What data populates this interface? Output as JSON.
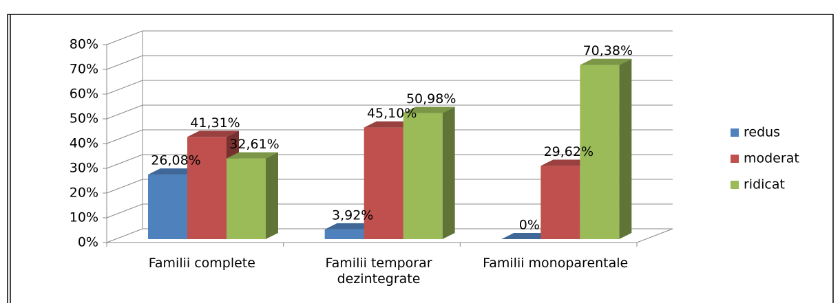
{
  "chart_data": {
    "type": "bar3d",
    "categories": [
      "Familii complete",
      "Familii temporar dezintegrate",
      "Familii monoparentale"
    ],
    "series": [
      {
        "name": "redus",
        "color": "#4f81bd",
        "values": [
          26.08,
          3.92,
          0
        ],
        "value_labels": [
          "26,08%",
          "3,92%",
          "0%"
        ]
      },
      {
        "name": "moderat",
        "color": "#c0504d",
        "values": [
          41.31,
          45.1,
          29.62
        ],
        "value_labels": [
          "41,31%",
          "45,10%",
          "29,62%"
        ]
      },
      {
        "name": "ridicat",
        "color": "#9bbb59",
        "values": [
          32.61,
          50.98,
          70.38
        ],
        "value_labels": [
          "32,61%",
          "50,98%",
          "70,38%"
        ]
      }
    ],
    "ylim": [
      0,
      80
    ],
    "yticks": [
      {
        "value": 0,
        "label": "0%"
      },
      {
        "value": 10,
        "label": "10%"
      },
      {
        "value": 20,
        "label": "20%"
      },
      {
        "value": 30,
        "label": "30%"
      },
      {
        "value": 40,
        "label": "40%"
      },
      {
        "value": 50,
        "label": "50%"
      },
      {
        "value": 60,
        "label": "60%"
      },
      {
        "value": 70,
        "label": "70%"
      },
      {
        "value": 80,
        "label": "80%"
      }
    ],
    "grid": true,
    "legend": "right"
  }
}
